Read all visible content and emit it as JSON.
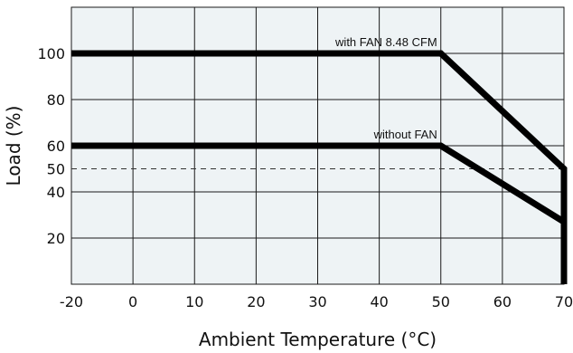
{
  "chart_data": {
    "type": "line",
    "title": "",
    "xlabel": "Ambient Temperature (°C)",
    "ylabel": "Load (%)",
    "xlim": [
      -20,
      70
    ],
    "ylim": [
      0,
      120
    ],
    "x_ticks": [
      -20,
      0,
      10,
      20,
      30,
      40,
      50,
      60,
      70
    ],
    "y_ticks": [
      20,
      40,
      50,
      60,
      80,
      100
    ],
    "grid": true,
    "reference_lines": [
      {
        "y": 50,
        "style": "dashed"
      }
    ],
    "annotations": [
      {
        "text": "with FAN 8.48 CFM",
        "series": 0
      },
      {
        "text": "without FAN",
        "series": 1
      }
    ],
    "series": [
      {
        "x": [
          -20,
          50,
          70,
          70
        ],
        "y": [
          100,
          100,
          50,
          0
        ]
      },
      {
        "x": [
          -20,
          50,
          70
        ],
        "y": [
          60,
          60,
          27
        ]
      }
    ],
    "colors": {
      "plot_background": "#eef3f5",
      "grid": "#1a1a1a",
      "series": "#000000"
    }
  }
}
